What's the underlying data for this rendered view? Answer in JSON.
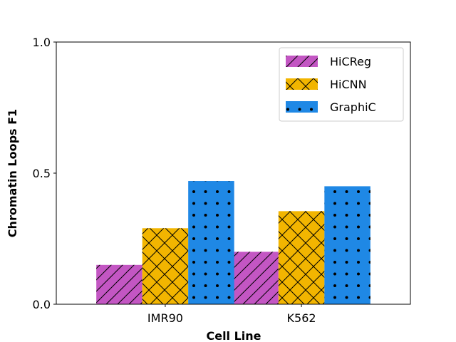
{
  "chart_data": {
    "type": "bar",
    "title": "",
    "xlabel": "Cell Line",
    "ylabel": "Chromatin Loops F1",
    "categories": [
      "IMR90",
      "K562"
    ],
    "ylim": [
      0,
      1
    ],
    "yticks": [
      "0.0",
      "0.5",
      "1.0"
    ],
    "series": [
      {
        "name": "HiCReg",
        "values": [
          0.15,
          0.2
        ],
        "color": "#c356c3",
        "hatch": "diagonal"
      },
      {
        "name": "HiCNN",
        "values": [
          0.29,
          0.355
        ],
        "color": "#f2b500",
        "hatch": "cross"
      },
      {
        "name": "GraphiC",
        "values": [
          0.47,
          0.45
        ],
        "color": "#1f88e5",
        "hatch": "dots"
      }
    ],
    "legend": "top-right",
    "grid": false
  }
}
